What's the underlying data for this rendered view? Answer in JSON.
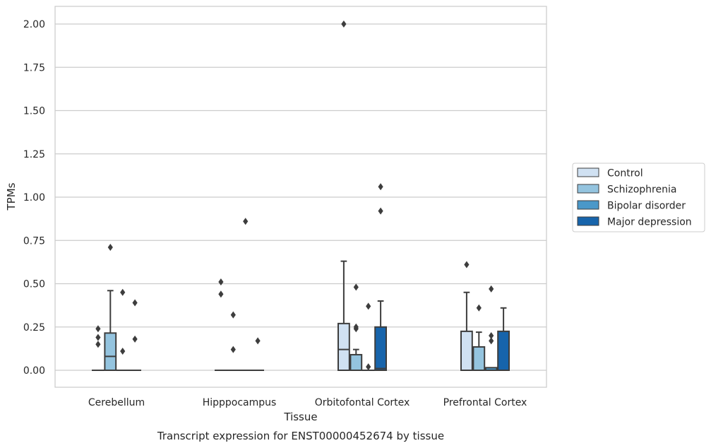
{
  "chart_data": {
    "type": "box",
    "xlabel": "Tissue",
    "ylabel": "TPMs",
    "caption": "Transcript expression for ENST00000452674 by tissue",
    "ylim": [
      -0.1,
      2.1
    ],
    "yticks": [
      "0.00",
      "0.25",
      "0.50",
      "0.75",
      "1.00",
      "1.25",
      "1.50",
      "1.75",
      "2.00"
    ],
    "grid": "horizontal",
    "legend_position": "right",
    "categories": [
      "Cerebellum",
      "Hipppocampus",
      "Orbitofontal Cortex",
      "Prefrontal Cortex"
    ],
    "series": [
      {
        "name": "Control",
        "color": "#d0e1f2",
        "boxes": [
          {
            "q1": 0,
            "median": 0,
            "q3": 0,
            "whislo": 0,
            "whishi": 0,
            "fliers": [
              0.15,
              0.19,
              0.24
            ]
          },
          {
            "q1": 0,
            "median": 0,
            "q3": 0,
            "whislo": 0,
            "whishi": 0,
            "fliers": [
              0.44,
              0.51
            ]
          },
          {
            "q1": 0,
            "median": 0.12,
            "q3": 0.27,
            "whislo": 0,
            "whishi": 0.63,
            "fliers": [
              2.0
            ]
          },
          {
            "q1": 0,
            "median": 0,
            "q3": 0.225,
            "whislo": 0,
            "whishi": 0.45,
            "fliers": [
              0.61
            ]
          }
        ]
      },
      {
        "name": "Schizophrenia",
        "color": "#94c4df",
        "boxes": [
          {
            "q1": 0,
            "median": 0.08,
            "q3": 0.215,
            "whislo": 0,
            "whishi": 0.46,
            "fliers": [
              0.71
            ]
          },
          {
            "q1": 0,
            "median": 0,
            "q3": 0,
            "whislo": 0,
            "whishi": 0,
            "fliers": [
              0.12,
              0.32
            ]
          },
          {
            "q1": 0,
            "median": 0,
            "q3": 0.09,
            "whislo": 0,
            "whishi": 0.12,
            "fliers": [
              0.24,
              0.25,
              0.48
            ]
          },
          {
            "q1": 0,
            "median": 0,
            "q3": 0.135,
            "whislo": 0,
            "whishi": 0.22,
            "fliers": [
              0.36
            ]
          }
        ]
      },
      {
        "name": "Bipolar disorder",
        "color": "#4a98c9",
        "boxes": [
          {
            "q1": 0,
            "median": 0,
            "q3": 0,
            "whislo": 0,
            "whishi": 0,
            "fliers": [
              0.11,
              0.45
            ]
          },
          {
            "q1": 0,
            "median": 0,
            "q3": 0,
            "whislo": 0,
            "whishi": 0,
            "fliers": [
              0.86
            ]
          },
          {
            "q1": 0,
            "median": 0,
            "q3": 0,
            "whislo": 0,
            "whishi": 0,
            "fliers": [
              0.02,
              0.37
            ]
          },
          {
            "q1": 0,
            "median": 0,
            "q3": 0.015,
            "whislo": 0,
            "whishi": 0.015,
            "fliers": [
              0.17,
              0.2,
              0.47
            ]
          }
        ]
      },
      {
        "name": "Major depression",
        "color": "#1764ab",
        "boxes": [
          {
            "q1": 0,
            "median": 0,
            "q3": 0,
            "whislo": 0,
            "whishi": 0,
            "fliers": [
              0.18,
              0.39
            ]
          },
          {
            "q1": 0,
            "median": 0,
            "q3": 0,
            "whislo": 0,
            "whishi": 0,
            "fliers": [
              0.17
            ]
          },
          {
            "q1": 0,
            "median": 0.01,
            "q3": 0.25,
            "whislo": 0,
            "whishi": 0.4,
            "fliers": [
              0.92,
              1.06
            ]
          },
          {
            "q1": 0,
            "median": 0,
            "q3": 0.225,
            "whislo": 0,
            "whishi": 0.36,
            "fliers": []
          }
        ]
      }
    ]
  }
}
